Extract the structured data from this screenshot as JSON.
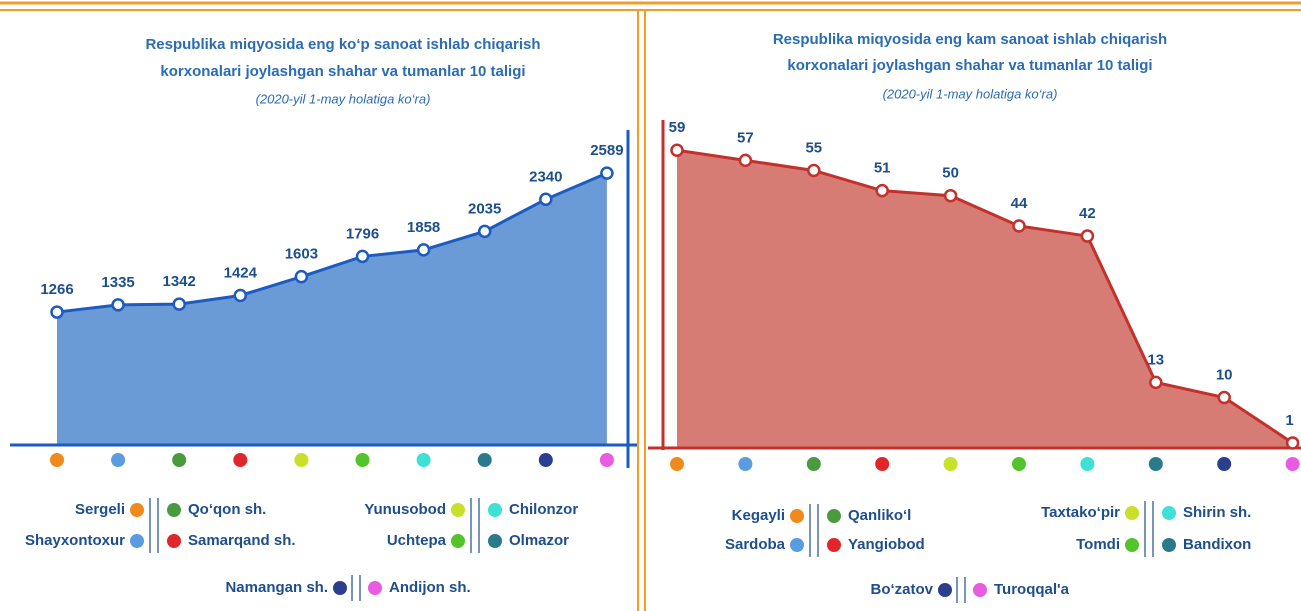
{
  "chart_data": [
    {
      "type": "area",
      "title": [
        "Respublika miqyosida eng ko‘p sanoat ishlab chiqarish",
        "korxonalari joylashgan shahar va tumanlar 10 taligi"
      ],
      "subtitle": "(2020-yil 1-may holatiga ko‘ra)",
      "categories": [
        "Sergeli",
        "Shayxontoxur",
        "Qo‘qon sh.",
        "Samarqand sh.",
        "Yunusobod",
        "Uchtepa",
        "Chilonzor",
        "Olmazor",
        "Namangan sh.",
        "Andijon sh."
      ],
      "category_colors": [
        "#f08a1c",
        "#5b9be0",
        "#4a9a3e",
        "#e0262b",
        "#c9e02a",
        "#54c42c",
        "#3fe0d6",
        "#2a7a8c",
        "#2b3f8f",
        "#e95be0"
      ],
      "values": [
        1266,
        1335,
        1342,
        1424,
        1603,
        1796,
        1858,
        2035,
        2340,
        2589
      ],
      "color": "#1c5bbf",
      "fill": "#6b9bd6",
      "ylim": [
        0,
        3000
      ]
    },
    {
      "type": "area",
      "title": [
        "Respublika miqyosida eng kam sanoat ishlab chiqarish",
        "korxonalari joylashgan shahar va tumanlar 10 taligi"
      ],
      "subtitle": "(2020-yil 1-may holatiga ko‘ra)",
      "categories": [
        "Kegayli",
        "Sardoba",
        "Qanliko‘l",
        "Yangiobod",
        "Taxtako‘pir",
        "Tomdi",
        "Shirin sh.",
        "Bandixon",
        "Bo‘zatov",
        "Turoqqal'a"
      ],
      "category_colors": [
        "#f08a1c",
        "#5b9be0",
        "#4a9a3e",
        "#e0262b",
        "#c9e02a",
        "#54c42c",
        "#3fe0d6",
        "#2a7a8c",
        "#2b3f8f",
        "#e95be0"
      ],
      "values": [
        59,
        57,
        55,
        51,
        50,
        44,
        42,
        13,
        10,
        1
      ],
      "color": "#c4302b",
      "fill": "#d77c74",
      "ylim": [
        0,
        65
      ]
    }
  ]
}
